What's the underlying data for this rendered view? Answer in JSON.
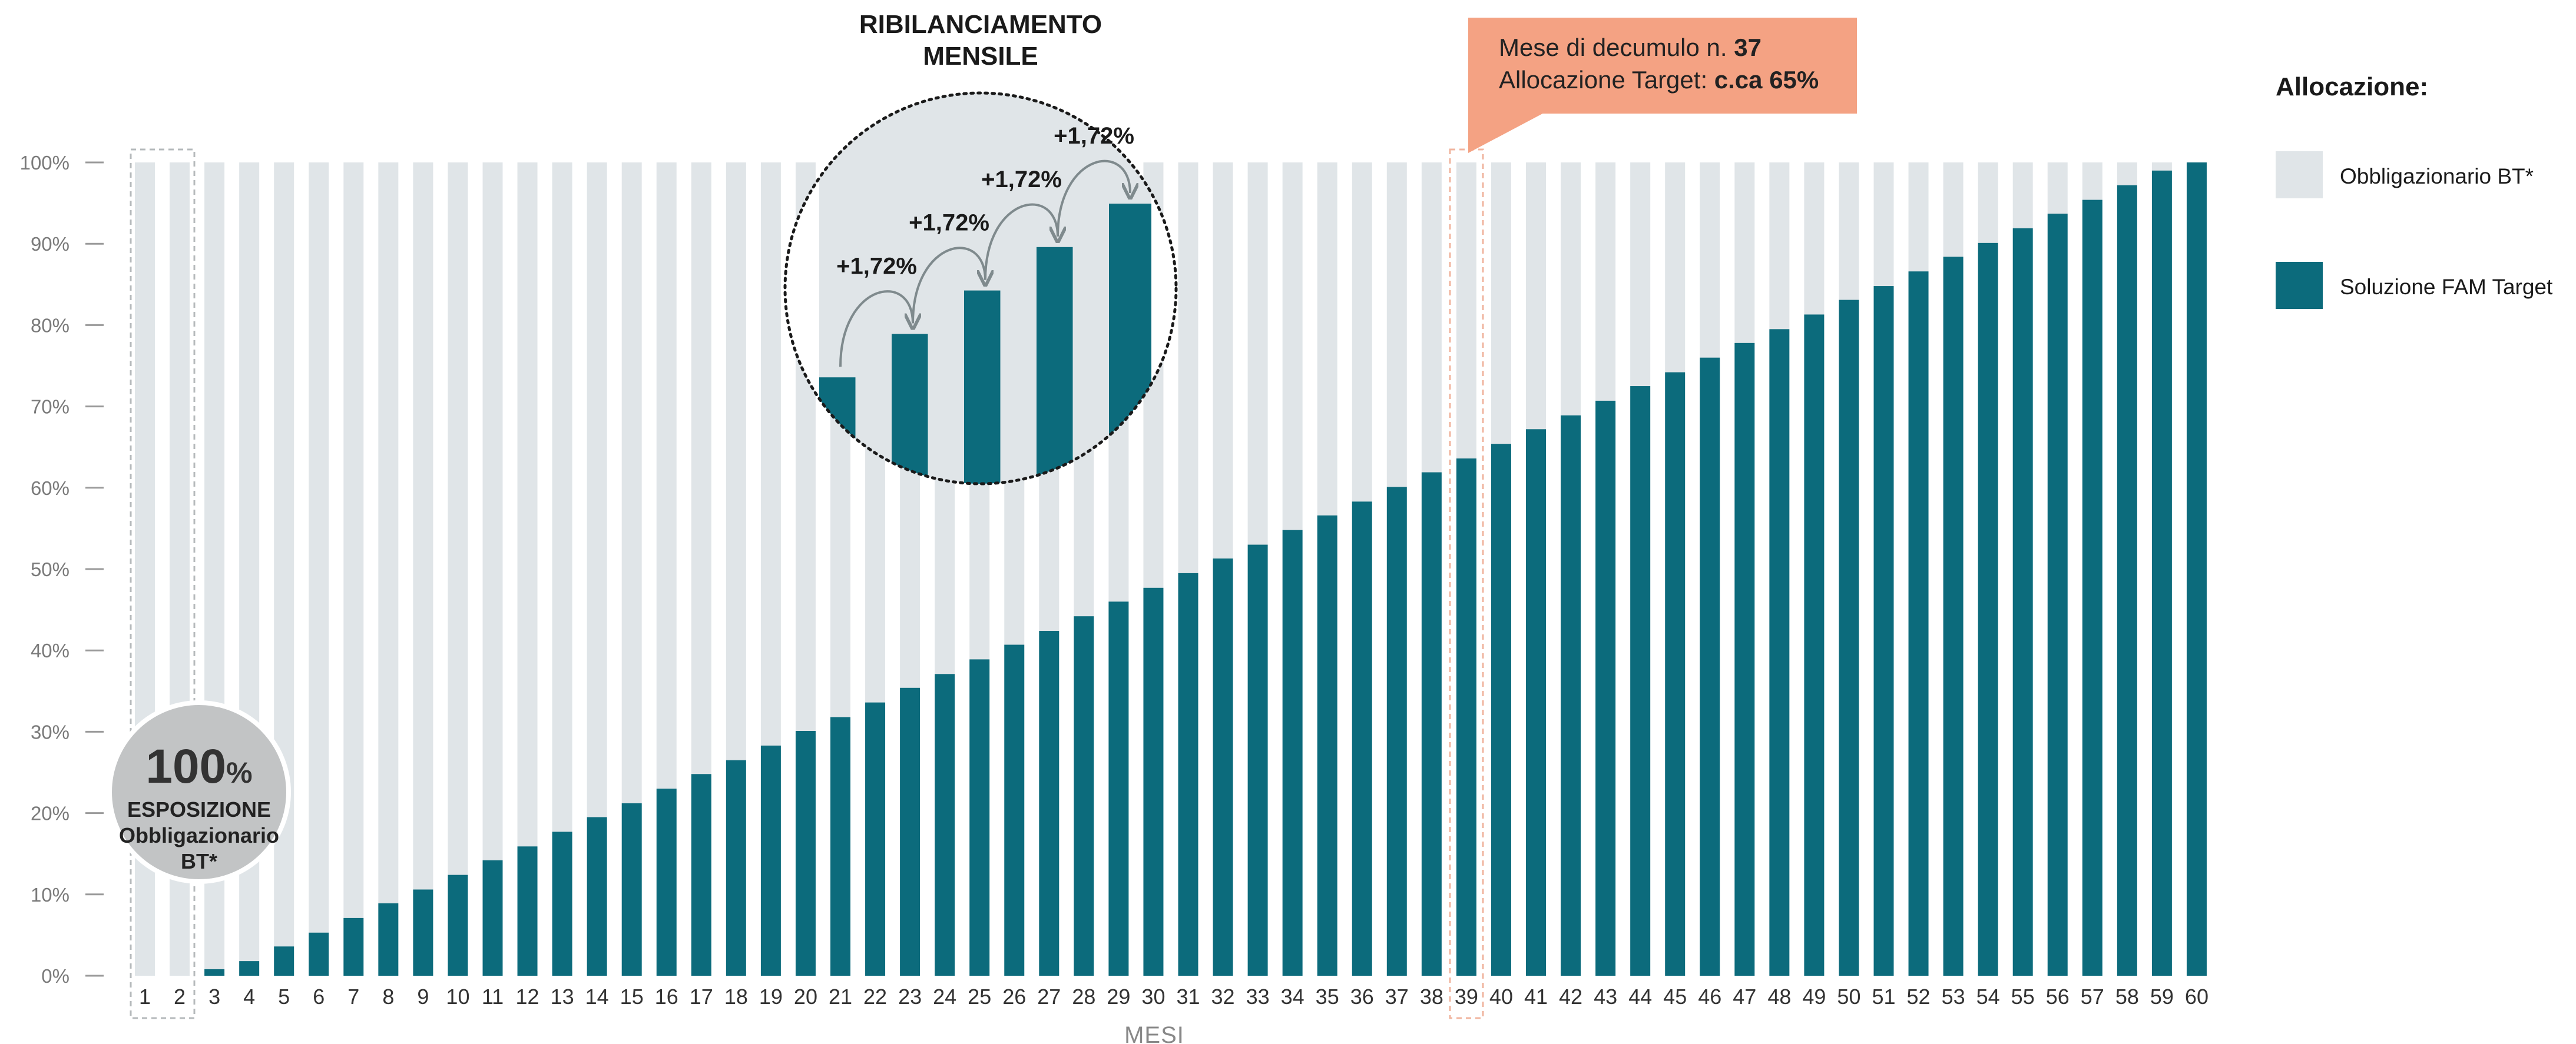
{
  "chart_data": {
    "type": "bar",
    "stacked": true,
    "xlabel": "MESI",
    "ylim": [
      0,
      100
    ],
    "y_ticks": [
      "0%",
      "10%",
      "20%",
      "30%",
      "40%",
      "50%",
      "60%",
      "70%",
      "80%",
      "90%",
      "100%"
    ],
    "categories": [
      1,
      2,
      3,
      4,
      5,
      6,
      7,
      8,
      9,
      10,
      11,
      12,
      13,
      14,
      15,
      16,
      17,
      18,
      19,
      20,
      21,
      22,
      23,
      24,
      25,
      26,
      27,
      28,
      29,
      30,
      31,
      32,
      33,
      34,
      35,
      36,
      37,
      38,
      39,
      40,
      41,
      42,
      43,
      44,
      45,
      46,
      47,
      48,
      49,
      50,
      51,
      52,
      53,
      54,
      55,
      56,
      57,
      58,
      59,
      60
    ],
    "series": [
      {
        "name": "Soluzione FAM Target",
        "color": "#0c6b7c",
        "values": [
          0,
          0,
          0.8,
          1.8,
          3.6,
          5.3,
          7.1,
          8.9,
          10.6,
          12.4,
          14.2,
          15.9,
          17.7,
          19.5,
          21.2,
          23.0,
          24.8,
          26.5,
          28.3,
          30.1,
          31.8,
          33.6,
          35.4,
          37.1,
          38.9,
          40.7,
          42.4,
          44.2,
          46.0,
          47.7,
          49.5,
          51.3,
          53.0,
          54.8,
          56.6,
          58.3,
          60.1,
          61.9,
          63.6,
          65.4,
          67.2,
          68.9,
          70.7,
          72.5,
          74.2,
          76.0,
          77.8,
          79.5,
          81.3,
          83.1,
          84.8,
          86.6,
          88.4,
          90.1,
          91.9,
          93.7,
          95.4,
          97.2,
          99.0,
          100
        ]
      },
      {
        "name": "Obbligazionario BT*",
        "color": "#e0e5e8",
        "values": [
          100,
          100,
          99.2,
          98.2,
          96.4,
          94.7,
          92.9,
          91.1,
          89.4,
          87.6,
          85.8,
          84.1,
          82.3,
          80.5,
          78.8,
          77.0,
          75.2,
          73.5,
          71.7,
          69.9,
          68.2,
          66.4,
          64.6,
          62.9,
          61.1,
          59.3,
          57.6,
          55.8,
          54.0,
          52.3,
          50.5,
          48.7,
          47.0,
          45.2,
          43.4,
          41.7,
          39.9,
          38.1,
          36.4,
          34.6,
          32.8,
          31.1,
          29.3,
          27.5,
          25.8,
          24.0,
          22.2,
          20.5,
          18.7,
          16.9,
          15.2,
          13.4,
          11.6,
          9.9,
          8.1,
          6.3,
          4.6,
          2.8,
          1.0,
          0
        ]
      }
    ],
    "highlighted_months": [
      1,
      2,
      39
    ],
    "legend": {
      "title": "Allocazione:",
      "placement": "right",
      "items": [
        {
          "label": "Obbligazionario BT*",
          "color": "#e0e5e8"
        },
        {
          "label": "Soluzione FAM Target",
          "color": "#0c6b7c"
        }
      ]
    },
    "callout": {
      "line1_prefix": "Mese di decumulo n. ",
      "line1_value": "37",
      "line2_prefix": "Allocazione Target: ",
      "line2_value": "c.ca 65%",
      "color": "#f4a283"
    },
    "badge": {
      "big": "100",
      "pct": "%",
      "line1": "ESPOSIZIONE",
      "line2": "Obbligazionario",
      "line3": "BT*",
      "color": "#c2c4c5"
    },
    "inset": {
      "title_line1": "RIBILANCIAMENTO",
      "title_line2": "MENSILE",
      "increment_label": "+1,72%",
      "bar_values": [
        24,
        33,
        42,
        51,
        60
      ]
    }
  }
}
